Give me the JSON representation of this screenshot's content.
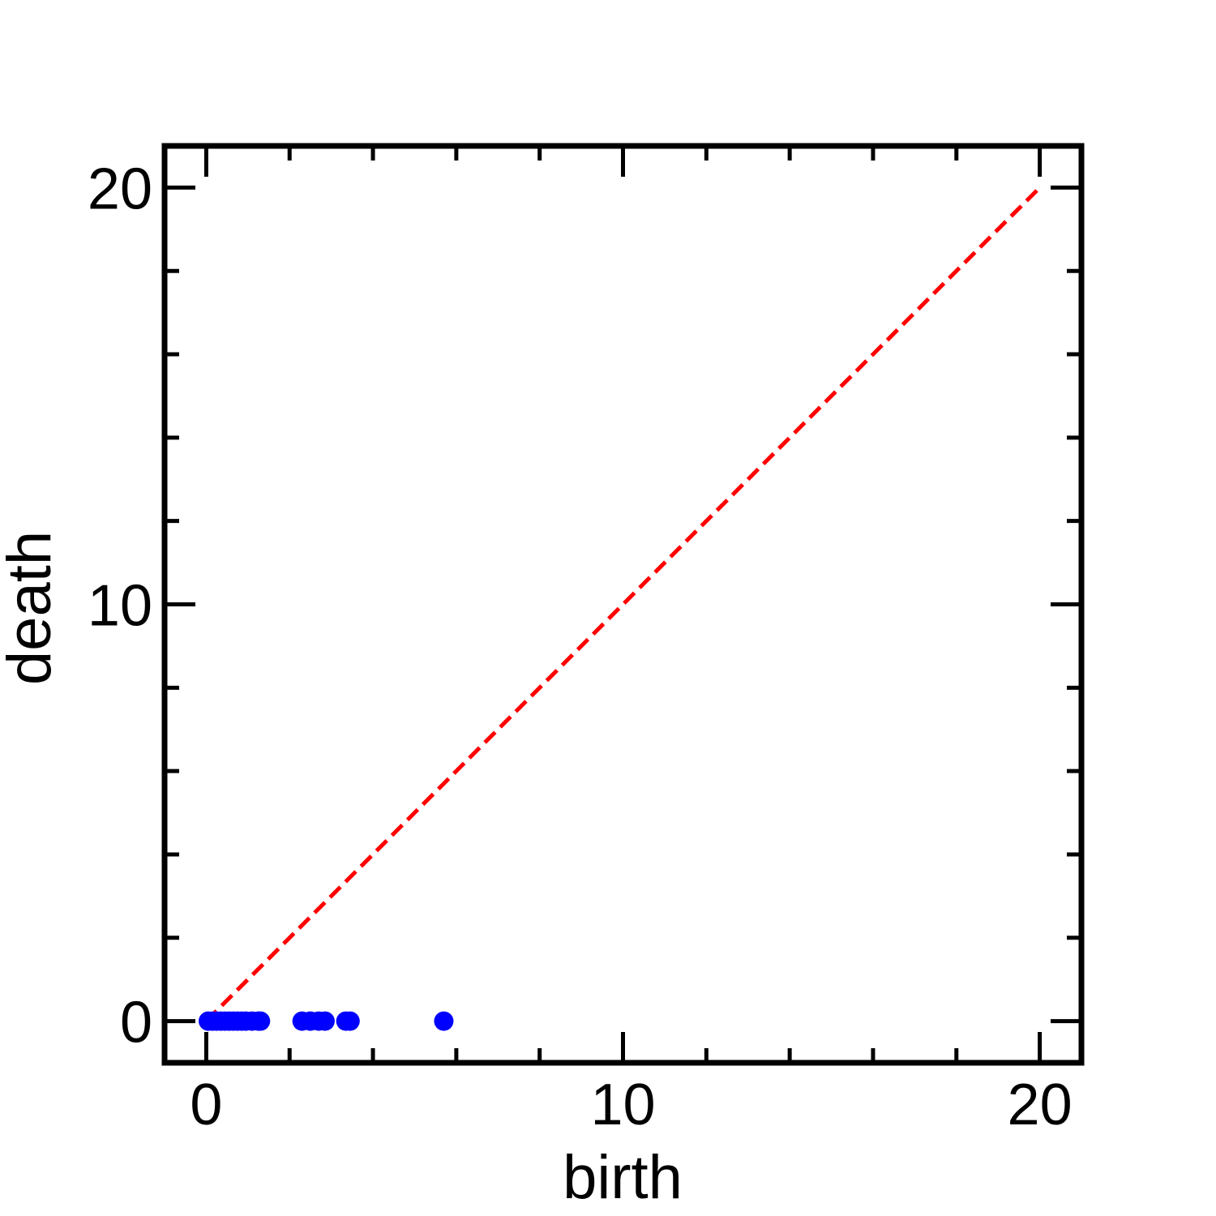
{
  "chart_data": {
    "type": "scatter",
    "xlabel": "birth",
    "ylabel": "death",
    "xlim": [
      -1,
      21
    ],
    "ylim": [
      -1,
      21
    ],
    "x_ticks": [
      0,
      10,
      20
    ],
    "y_ticks": [
      0,
      10,
      20
    ],
    "x_tick_labels": [
      "0",
      "10",
      "20"
    ],
    "y_tick_labels": [
      "0",
      "10",
      "20"
    ],
    "x_minor_ticks": [
      0,
      2,
      4,
      6,
      8,
      10,
      12,
      14,
      16,
      18,
      20
    ],
    "y_minor_ticks": [
      0,
      2,
      4,
      6,
      8,
      10,
      12,
      14,
      16,
      18,
      20
    ],
    "grid": false,
    "legend": "none",
    "points": [
      {
        "x": 0.05,
        "y": 0
      },
      {
        "x": 0.15,
        "y": 0
      },
      {
        "x": 0.25,
        "y": 0
      },
      {
        "x": 0.35,
        "y": 0
      },
      {
        "x": 0.45,
        "y": 0
      },
      {
        "x": 0.55,
        "y": 0
      },
      {
        "x": 0.65,
        "y": 0
      },
      {
        "x": 0.75,
        "y": 0
      },
      {
        "x": 0.85,
        "y": 0
      },
      {
        "x": 0.95,
        "y": 0
      },
      {
        "x": 1.1,
        "y": 0
      },
      {
        "x": 1.25,
        "y": 0
      },
      {
        "x": 1.3,
        "y": 0
      },
      {
        "x": 2.3,
        "y": 0
      },
      {
        "x": 2.5,
        "y": 0
      },
      {
        "x": 2.7,
        "y": 0
      },
      {
        "x": 2.85,
        "y": 0
      },
      {
        "x": 3.35,
        "y": 0
      },
      {
        "x": 3.45,
        "y": 0
      },
      {
        "x": 5.7,
        "y": 0
      }
    ],
    "diagonal": {
      "from": [
        0,
        0
      ],
      "to": [
        20,
        20
      ]
    },
    "colors": {
      "points": "#0000ff",
      "diagonal": "#ff0000",
      "axes": "#000000"
    }
  }
}
